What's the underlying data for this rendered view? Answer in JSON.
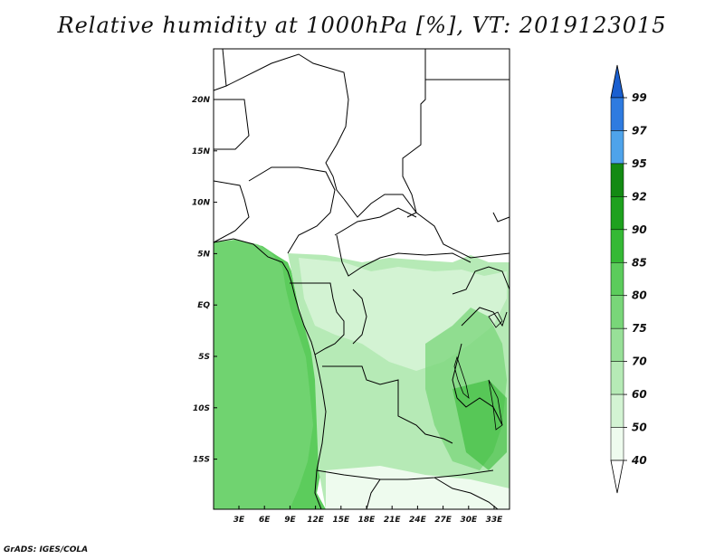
{
  "title": "Relative humidity at 1000hPa [%], VT: 2019123015",
  "footer": "GrADS: IGES/COLA",
  "map": {
    "lon_range": [
      0,
      35
    ],
    "lat_range": [
      -20,
      25
    ],
    "x_ticks": [
      "3E",
      "6E",
      "9E",
      "12E",
      "15E",
      "18E",
      "21E",
      "24E",
      "27E",
      "30E",
      "33E"
    ],
    "y_ticks": [
      "20N",
      "15N",
      "10N",
      "5N",
      "EQ",
      "5S",
      "10S",
      "15S"
    ]
  },
  "colorbar": {
    "levels": [
      "99",
      "97",
      "95",
      "92",
      "90",
      "85",
      "80",
      "75",
      "70",
      "60",
      "50",
      "40"
    ],
    "colors": [
      "#1a5fd0",
      "#2e7be0",
      "#4ea3ea",
      "#138a13",
      "#1ea11e",
      "#35b935",
      "#5ccc5c",
      "#79d679",
      "#98e098",
      "#b6eab6",
      "#d3f3d3",
      "#eefbee",
      "#ffffff"
    ]
  }
}
